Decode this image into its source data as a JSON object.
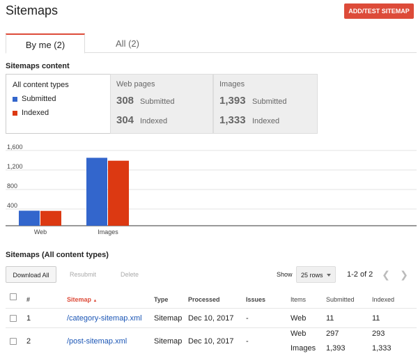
{
  "header": {
    "title": "Sitemaps",
    "add_button": "ADD/TEST SITEMAP"
  },
  "tabs": [
    {
      "label": "By me (2)",
      "active": true
    },
    {
      "label": "All (2)",
      "active": false
    }
  ],
  "content_section": {
    "title": "Sitemaps content",
    "all_panel": {
      "label": "All content types",
      "legend": [
        {
          "label": "Submitted",
          "color": "#3366cc"
        },
        {
          "label": "Indexed",
          "color": "#dc3912"
        }
      ]
    },
    "web_panel": {
      "label": "Web pages",
      "submitted": "308",
      "submitted_label": "Submitted",
      "indexed": "304",
      "indexed_label": "Indexed"
    },
    "images_panel": {
      "label": "Images",
      "submitted": "1,393",
      "submitted_label": "Submitted",
      "indexed": "1,333",
      "indexed_label": "Indexed"
    }
  },
  "chart_data": {
    "type": "bar",
    "categories": [
      "Web",
      "Images"
    ],
    "series": [
      {
        "name": "Submitted",
        "values": [
          308,
          1393
        ]
      },
      {
        "name": "Indexed",
        "values": [
          304,
          1333
        ]
      }
    ],
    "y_ticks": [
      "1,600",
      "1,200",
      "800",
      "400"
    ],
    "ylim": [
      0,
      1600
    ],
    "colors": [
      "#3366cc",
      "#dc3912"
    ],
    "grid": true
  },
  "table_section": {
    "title": "Sitemaps (All content types)",
    "buttons": {
      "download": "Download All",
      "resubmit": "Resubmit",
      "delete": "Delete"
    },
    "show_label": "Show",
    "rows_select": "25 rows",
    "pagination": "1-2 of 2",
    "columns": {
      "num": "#",
      "sitemap": "Sitemap",
      "sort_arrow": "▲",
      "type": "Type",
      "processed": "Processed",
      "issues": "Issues",
      "items": "Items",
      "submitted": "Submitted",
      "indexed": "Indexed"
    },
    "rows": [
      {
        "num": "1",
        "sitemap": "/category-sitemap.xml",
        "type": "Sitemap",
        "processed": "Dec 10, 2017",
        "issues": "-",
        "items": [
          "Web"
        ],
        "submitted": [
          "11"
        ],
        "indexed": [
          "11"
        ]
      },
      {
        "num": "2",
        "sitemap": "/post-sitemap.xml",
        "type": "Sitemap",
        "processed": "Dec 10, 2017",
        "issues": "-",
        "items": [
          "Web",
          "Images"
        ],
        "submitted": [
          "297",
          "1,393"
        ],
        "indexed": [
          "293",
          "1,333"
        ]
      }
    ]
  }
}
